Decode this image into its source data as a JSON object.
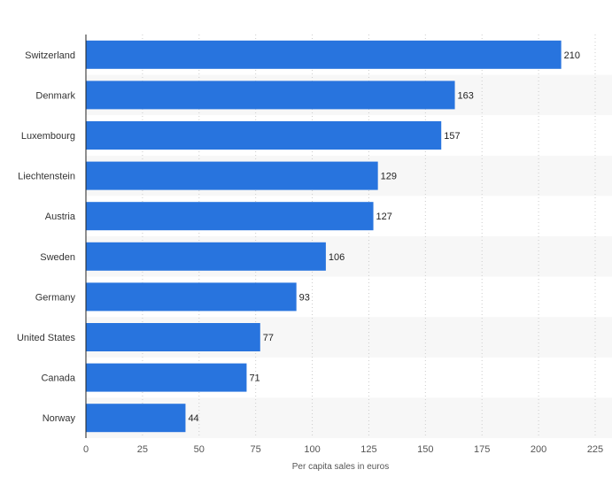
{
  "chart_data": {
    "type": "bar",
    "orientation": "horizontal",
    "categories": [
      "Switzerland",
      "Denmark",
      "Luxembourg",
      "Liechtenstein",
      "Austria",
      "Sweden",
      "Germany",
      "United States",
      "Canada",
      "Norway"
    ],
    "values": [
      210,
      163,
      157,
      129,
      127,
      106,
      93,
      77,
      71,
      44
    ],
    "xlabel": "Per capita sales in euros",
    "ylabel": "",
    "xlim": [
      0,
      225
    ],
    "xticks": [
      0,
      25,
      50,
      75,
      100,
      125,
      150,
      175,
      200,
      225
    ],
    "grid": true,
    "colors": {
      "bar": "#2874DE",
      "band": "#F7F7F7",
      "grid": "#CCCCCC",
      "axis": "#222222"
    }
  }
}
